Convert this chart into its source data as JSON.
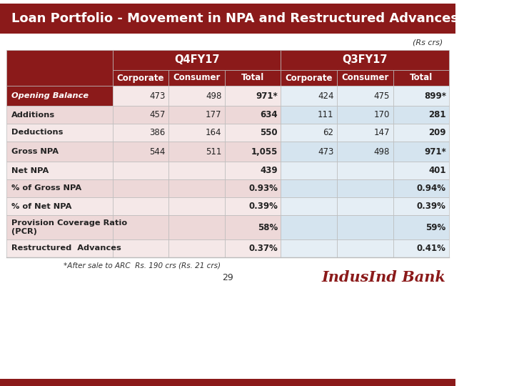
{
  "title": "Loan Portfolio - Movement in NPA and Restructured Advances",
  "rs_crs_label": "(Rs crs)",
  "header_q4": "Q4FY17",
  "header_q3": "Q3FY17",
  "col_headers": [
    "Corporate",
    "Consumer",
    "Total",
    "Corporate",
    "Consumer",
    "Total"
  ],
  "row_labels": [
    "Opening Balance",
    "Additions",
    "Deductions",
    "Gross NPA",
    "Net NPA",
    "% of Gross NPA",
    "% of Net NPA",
    "Provision Coverage Ratio\n(PCR)",
    "Restructured  Advances"
  ],
  "table_data": [
    [
      "473",
      "498",
      "971*",
      "424",
      "475",
      "899*"
    ],
    [
      "457",
      "177",
      "634",
      "111",
      "170",
      "281"
    ],
    [
      "386",
      "164",
      "550",
      "62",
      "147",
      "209"
    ],
    [
      "544",
      "511",
      "1,055",
      "473",
      "498",
      "971*"
    ],
    [
      "",
      "",
      "439",
      "",
      "",
      "401"
    ],
    [
      "",
      "",
      "0.93%",
      "",
      "",
      "0.94%"
    ],
    [
      "",
      "",
      "0.39%",
      "",
      "",
      "0.39%"
    ],
    [
      "",
      "",
      "58%",
      "",
      "",
      "59%"
    ],
    [
      "",
      "",
      "0.37%",
      "",
      "",
      "0.41%"
    ]
  ],
  "title_bg": "#8B1A1A",
  "title_color": "#FFFFFF",
  "header_bg": "#8B1A1A",
  "header_color": "#FFFFFF",
  "row_label_bg_dark": "#8B1A1A",
  "row_label_color_white": "#FFFFFF",
  "row_label_color_dark": "#222222",
  "cell_bg_pink_light": "#F5E8E8",
  "cell_bg_pink_dark": "#EDD8D8",
  "cell_bg_blue_light": "#E5EEF5",
  "cell_bg_blue_dark": "#D5E4EF",
  "border_color": "#BBBBBB",
  "footnote": "*After sale to ARC  Rs. 190 crs (Rs. 21 crs)",
  "page_number": "29",
  "logo_text": "IndusInd Bank",
  "bottom_bar_color": "#8B1A1A"
}
